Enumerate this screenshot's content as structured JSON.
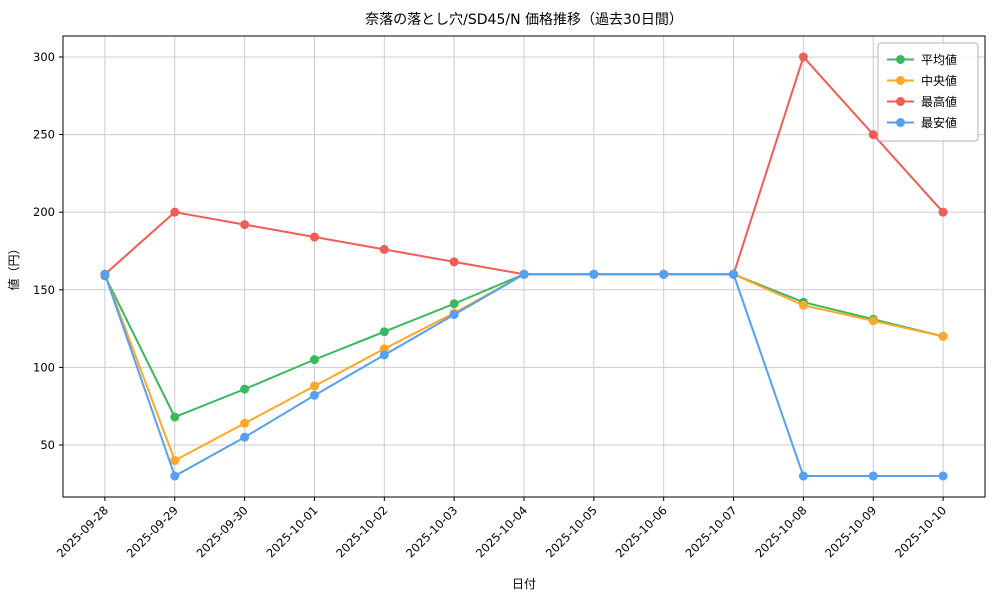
{
  "chart_data": {
    "type": "line",
    "title": "奈落の落とし穴/SD45/N 価格推移（過去30日間）",
    "xlabel": "日付",
    "ylabel": "値（円）",
    "grid": true,
    "legend_position": "top-right",
    "ylim": [
      16.5,
      313.5
    ],
    "yticks": [
      50,
      100,
      150,
      200,
      250,
      300
    ],
    "categories": [
      "2025-09-28",
      "2025-09-29",
      "2025-09-30",
      "2025-10-01",
      "2025-10-02",
      "2025-10-03",
      "2025-10-04",
      "2025-10-05",
      "2025-10-06",
      "2025-10-07",
      "2025-10-08",
      "2025-10-09",
      "2025-10-10"
    ],
    "series": [
      {
        "key": "average",
        "name": "平均値",
        "color": "#3bb75e",
        "values": [
          159,
          68,
          86,
          105,
          123,
          141,
          160,
          160,
          160,
          160,
          142,
          131,
          120
        ]
      },
      {
        "key": "median",
        "name": "中央値",
        "color": "#ffa726",
        "values": [
          160,
          40,
          64,
          88,
          112,
          135,
          160,
          160,
          160,
          160,
          140,
          130,
          120
        ]
      },
      {
        "key": "max",
        "name": "最高値",
        "color": "#f25c54",
        "values": [
          160,
          200,
          192,
          184,
          176,
          168,
          160,
          160,
          160,
          160,
          300,
          250,
          200
        ]
      },
      {
        "key": "min",
        "name": "最安値",
        "color": "#55a0f0",
        "values": [
          160,
          30,
          55,
          82,
          108,
          134,
          160,
          160,
          160,
          160,
          30,
          30,
          30
        ]
      }
    ],
    "colors": {
      "grid": "#cccccc",
      "axis_edge": "#000000",
      "legend_border": "#b3b3b3",
      "background": "#ffffff"
    }
  }
}
